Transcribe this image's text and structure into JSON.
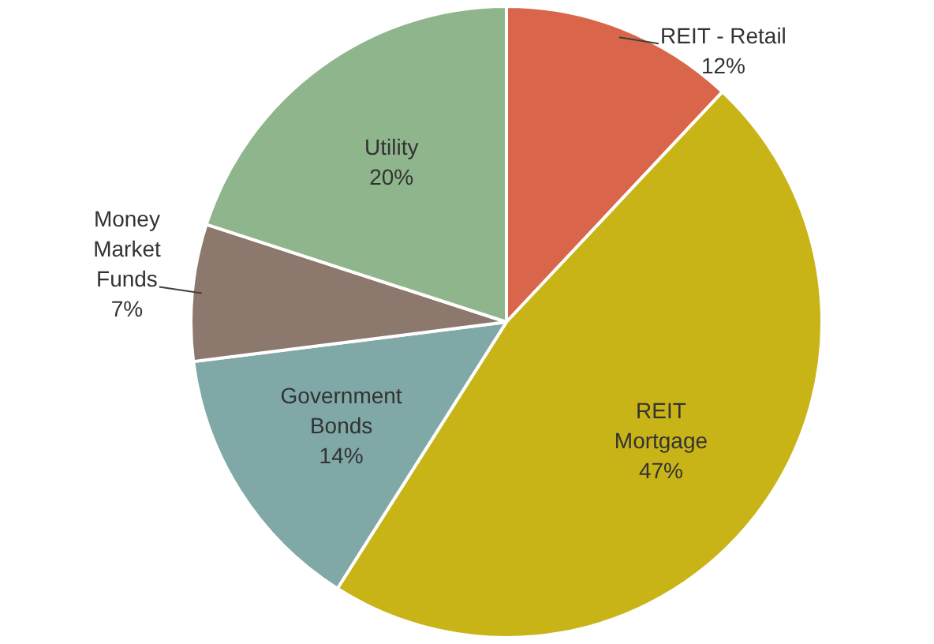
{
  "chart_data": {
    "type": "pie",
    "categories": [
      "REIT - Retail",
      "REIT Mortgage",
      "Government Bonds",
      "Money Market Funds",
      "Utility"
    ],
    "values": [
      12,
      47,
      14,
      7,
      20
    ],
    "value_labels": [
      "12%",
      "47%",
      "14%",
      "7%",
      "20%"
    ],
    "colors": [
      "#d9664a",
      "#c9b418",
      "#7fa8a6",
      "#8c786c",
      "#8fb58c"
    ],
    "legend": false
  }
}
